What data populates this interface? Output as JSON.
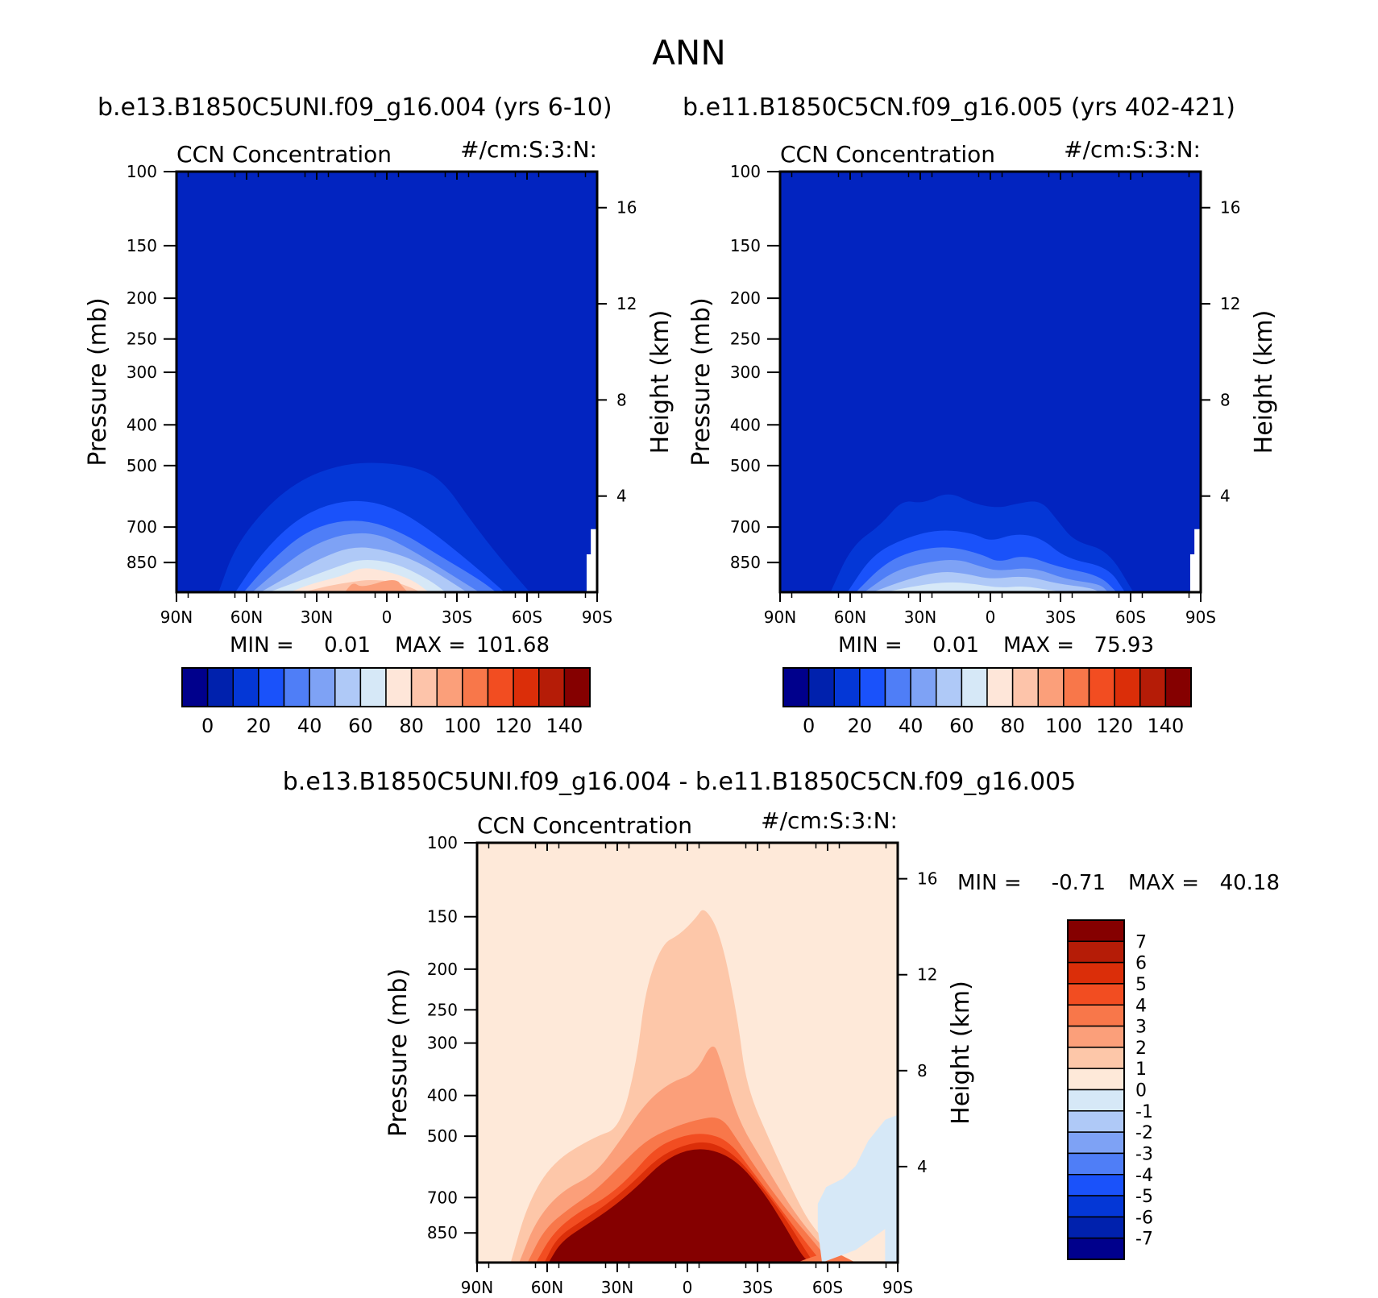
{
  "figure_title": "ANN",
  "colors": {
    "ccn_scale": [
      "#00008C",
      "#0021AD",
      "#0437D6",
      "#1A52FA",
      "#4F7EF7",
      "#7EA2F5",
      "#AFC9F7",
      "#D6E8F7",
      "#FEE6D9",
      "#FDC4AA",
      "#FB9F7A",
      "#F8774A",
      "#F24D21",
      "#DB2E09",
      "#B51C07",
      "#850000"
    ],
    "diff_scale": [
      "#00008C",
      "#0021AD",
      "#0437D6",
      "#1A52FA",
      "#4F7EF7",
      "#7EA2F5",
      "#AFC9F7",
      "#D6E8F7",
      "#FEE9D9",
      "#FDC7A9",
      "#FB9F7A",
      "#F8774A",
      "#F24D21",
      "#DB2E09",
      "#B51C07",
      "#850000"
    ]
  },
  "chart_data": [
    {
      "type": "contour",
      "id": "model1",
      "header": "b.e13.B1850C5UNI.f09_g16.004 (yrs 6-10)",
      "variable": "CCN Concentration",
      "units": "#/cm:S:3:N:",
      "ylabel": "Pressure (mb)",
      "ylabel_right": "Height (km)",
      "y_ticks": [
        "100",
        "150",
        "200",
        "250",
        "300",
        "400",
        "500",
        "700",
        "850"
      ],
      "y_ticks_right": [
        "16",
        "12",
        "8",
        "4"
      ],
      "x_ticks": [
        "90N",
        "60N",
        "30N",
        "0",
        "30S",
        "60S",
        "90S"
      ],
      "min_label": "MIN =",
      "min": "0.01",
      "max_label": "MAX =",
      "max": "101.68",
      "levels": [
        0,
        10,
        20,
        30,
        40,
        50,
        60,
        70,
        80,
        90,
        100,
        110,
        120,
        130,
        140
      ],
      "colorbar_labels": [
        "0",
        "20",
        "40",
        "60",
        "80",
        "100",
        "120",
        "140"
      ]
    },
    {
      "type": "contour",
      "id": "model2",
      "header": "b.e11.B1850C5CN.f09_g16.005 (yrs 402-421)",
      "variable": "CCN Concentration",
      "units": "#/cm:S:3:N:",
      "ylabel": "Pressure (mb)",
      "ylabel_right": "Height (km)",
      "y_ticks": [
        "100",
        "150",
        "200",
        "250",
        "300",
        "400",
        "500",
        "700",
        "850"
      ],
      "y_ticks_right": [
        "16",
        "12",
        "8",
        "4"
      ],
      "x_ticks": [
        "90N",
        "60N",
        "30N",
        "0",
        "30S",
        "60S",
        "90S"
      ],
      "min_label": "MIN =",
      "min": "0.01",
      "max_label": "MAX =",
      "max": "75.93",
      "levels": [
        0,
        10,
        20,
        30,
        40,
        50,
        60,
        70,
        80,
        90,
        100,
        110,
        120,
        130,
        140
      ],
      "colorbar_labels": [
        "0",
        "20",
        "40",
        "60",
        "80",
        "100",
        "120",
        "140"
      ]
    },
    {
      "type": "contour",
      "id": "difference",
      "header": "b.e13.B1850C5UNI.f09_g16.004 - b.e11.B1850C5CN.f09_g16.005",
      "variable": "CCN Concentration",
      "units": "#/cm:S:3:N:",
      "ylabel": "Pressure (mb)",
      "ylabel_right": "Height (km)",
      "y_ticks": [
        "100",
        "150",
        "200",
        "250",
        "300",
        "400",
        "500",
        "700",
        "850"
      ],
      "y_ticks_right": [
        "16",
        "12",
        "8",
        "4"
      ],
      "x_ticks": [
        "90N",
        "60N",
        "30N",
        "0",
        "30S",
        "60S",
        "90S"
      ],
      "min_label": "MIN =",
      "min": "-0.71",
      "max_label": "MAX =",
      "max": "40.18",
      "levels": [
        -7,
        -6,
        -5,
        -4,
        -3,
        -2,
        -1,
        0,
        1,
        2,
        3,
        4,
        5,
        6,
        7
      ],
      "colorbar_labels": [
        "7",
        "6",
        "5",
        "4",
        "3",
        "2",
        "1",
        "0",
        "-1",
        "-2",
        "-3",
        "-4",
        "-5",
        "-6",
        "-7"
      ]
    }
  ]
}
